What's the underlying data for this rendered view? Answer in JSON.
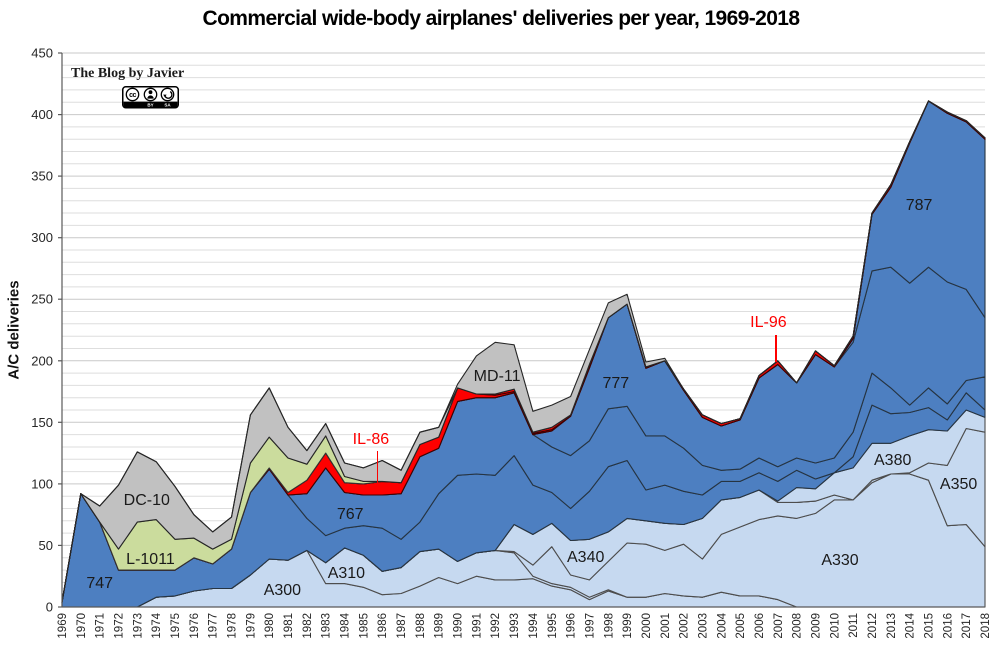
{
  "page": {
    "title": "Commercial wide-body airplanes' deliveries per year, 1969-2018"
  },
  "watermark": {
    "text": "The Blog by Javier",
    "badge": {
      "name": "CC BY-SA license badge",
      "cc_text": "cc",
      "labels": [
        "BY",
        "SA"
      ]
    }
  },
  "chart_data": {
    "type": "area",
    "stacked": true,
    "title": "Commercial wide-body airplanes' deliveries per year, 1969-2018",
    "xlabel": "",
    "ylabel": "A/C deliveries",
    "ylim": [
      0,
      450
    ],
    "y_major_step": 50,
    "y_minor_step": 10,
    "yticks": [
      0,
      50,
      100,
      150,
      200,
      250,
      300,
      350,
      400,
      450
    ],
    "grid": "horizontal",
    "x": [
      1969,
      1970,
      1971,
      1972,
      1973,
      1974,
      1975,
      1976,
      1977,
      1978,
      1979,
      1980,
      1981,
      1982,
      1983,
      1984,
      1985,
      1986,
      1987,
      1988,
      1989,
      1990,
      1991,
      1992,
      1993,
      1994,
      1995,
      1996,
      1997,
      1998,
      1999,
      2000,
      2001,
      2002,
      2003,
      2004,
      2005,
      2006,
      2007,
      2008,
      2009,
      2010,
      2011,
      2012,
      2013,
      2014,
      2015,
      2016,
      2017,
      2018
    ],
    "series": [
      {
        "name": "A300",
        "color": "#c6d9f0",
        "stroke": "#4d4d4d",
        "values": [
          0,
          0,
          0,
          0,
          0,
          8,
          9,
          13,
          15,
          15,
          26,
          39,
          38,
          46,
          19,
          19,
          16,
          10,
          11,
          17,
          24,
          19,
          25,
          22,
          22,
          23,
          17,
          14,
          6,
          13,
          8,
          8,
          11,
          9,
          8,
          12,
          9,
          9,
          6,
          0,
          0,
          0,
          0,
          0,
          0,
          0,
          0,
          0,
          0,
          0
        ]
      },
      {
        "name": "A310",
        "color": "#c6d9f0",
        "stroke": "#4d4d4d",
        "values": [
          0,
          0,
          0,
          0,
          0,
          0,
          0,
          0,
          0,
          0,
          0,
          0,
          0,
          0,
          17,
          29,
          26,
          19,
          21,
          28,
          23,
          18,
          19,
          24,
          22,
          2,
          2,
          2,
          2,
          1,
          0,
          0,
          0,
          0,
          0,
          0,
          0,
          0,
          0,
          0,
          0,
          0,
          0,
          0,
          0,
          0,
          0,
          0,
          0,
          0
        ]
      },
      {
        "name": "A330",
        "color": "#c6d9f0",
        "stroke": "#4d4d4d",
        "values": [
          0,
          0,
          0,
          0,
          0,
          0,
          0,
          0,
          0,
          0,
          0,
          0,
          0,
          0,
          0,
          0,
          0,
          0,
          0,
          0,
          0,
          0,
          0,
          0,
          1,
          9,
          30,
          10,
          14,
          23,
          44,
          43,
          35,
          42,
          31,
          47,
          56,
          62,
          68,
          72,
          76,
          87,
          87,
          101,
          108,
          108,
          103,
          66,
          67,
          49
        ]
      },
      {
        "name": "A340",
        "color": "#c6d9f0",
        "stroke": "#4d4d4d",
        "values": [
          0,
          0,
          0,
          0,
          0,
          0,
          0,
          0,
          0,
          0,
          0,
          0,
          0,
          0,
          0,
          0,
          0,
          0,
          0,
          0,
          0,
          0,
          0,
          0,
          22,
          25,
          19,
          28,
          33,
          24,
          20,
          19,
          22,
          16,
          33,
          28,
          24,
          24,
          11,
          13,
          10,
          4,
          0,
          2,
          0,
          0,
          0,
          0,
          0,
          0
        ]
      },
      {
        "name": "A350",
        "color": "#c6d9f0",
        "stroke": "#4d4d4d",
        "values": [
          0,
          0,
          0,
          0,
          0,
          0,
          0,
          0,
          0,
          0,
          0,
          0,
          0,
          0,
          0,
          0,
          0,
          0,
          0,
          0,
          0,
          0,
          0,
          0,
          0,
          0,
          0,
          0,
          0,
          0,
          0,
          0,
          0,
          0,
          0,
          0,
          0,
          0,
          0,
          0,
          0,
          0,
          0,
          0,
          0,
          1,
          14,
          49,
          78,
          93
        ]
      },
      {
        "name": "A380",
        "color": "#c6d9f0",
        "stroke": "#4d4d4d",
        "values": [
          0,
          0,
          0,
          0,
          0,
          0,
          0,
          0,
          0,
          0,
          0,
          0,
          0,
          0,
          0,
          0,
          0,
          0,
          0,
          0,
          0,
          0,
          0,
          0,
          0,
          0,
          0,
          0,
          0,
          0,
          0,
          0,
          0,
          0,
          0,
          0,
          0,
          0,
          1,
          12,
          10,
          18,
          26,
          30,
          25,
          30,
          27,
          28,
          15,
          12
        ]
      },
      {
        "name": "747",
        "color": "#4d7fc1",
        "stroke": "#263442",
        "values": [
          4,
          92,
          69,
          30,
          30,
          22,
          21,
          27,
          20,
          32,
          67,
          73,
          53,
          26,
          22,
          16,
          24,
          35,
          23,
          24,
          45,
          70,
          64,
          61,
          56,
          40,
          25,
          26,
          39,
          53,
          47,
          25,
          31,
          27,
          19,
          15,
          13,
          14,
          16,
          14,
          8,
          0,
          9,
          31,
          24,
          19,
          18,
          9,
          14,
          6
        ]
      },
      {
        "name": "767",
        "color": "#4d7fc1",
        "stroke": "#263442",
        "values": [
          0,
          0,
          0,
          0,
          0,
          0,
          0,
          0,
          0,
          0,
          0,
          0,
          0,
          20,
          55,
          29,
          25,
          27,
          37,
          53,
          37,
          60,
          62,
          63,
          51,
          41,
          37,
          43,
          41,
          47,
          44,
          44,
          40,
          35,
          24,
          9,
          10,
          12,
          12,
          10,
          13,
          12,
          20,
          26,
          21,
          6,
          16,
          13,
          10,
          27
        ]
      },
      {
        "name": "777",
        "color": "#4d7fc1",
        "stroke": "#263442",
        "values": [
          0,
          0,
          0,
          0,
          0,
          0,
          0,
          0,
          0,
          0,
          0,
          0,
          0,
          0,
          0,
          0,
          0,
          0,
          0,
          0,
          0,
          0,
          0,
          0,
          0,
          0,
          13,
          32,
          59,
          74,
          83,
          55,
          61,
          47,
          39,
          36,
          40,
          65,
          83,
          61,
          88,
          74,
          73,
          83,
          98,
          99,
          98,
          99,
          74,
          48
        ]
      },
      {
        "name": "787",
        "color": "#4d7fc1",
        "stroke": "#263442",
        "values": [
          0,
          0,
          0,
          0,
          0,
          0,
          0,
          0,
          0,
          0,
          0,
          0,
          0,
          0,
          0,
          0,
          0,
          0,
          0,
          0,
          0,
          0,
          0,
          0,
          0,
          0,
          0,
          0,
          0,
          0,
          0,
          0,
          0,
          0,
          0,
          0,
          0,
          0,
          0,
          0,
          0,
          0,
          3,
          46,
          65,
          114,
          135,
          137,
          136,
          145
        ]
      },
      {
        "name": "IL-86",
        "color": "#fe0000",
        "stroke": "#420000",
        "values": [
          0,
          0,
          0,
          0,
          0,
          0,
          0,
          0,
          0,
          0,
          0,
          1,
          2,
          11,
          12,
          8,
          9,
          11,
          9,
          10,
          9,
          11,
          3,
          2,
          1,
          1,
          1,
          0,
          1,
          0,
          0,
          0,
          0,
          0,
          0,
          0,
          0,
          0,
          0,
          0,
          0,
          0,
          0,
          0,
          0,
          0,
          0,
          0,
          0,
          0
        ]
      },
      {
        "name": "IL-96",
        "color": "#fe0000",
        "stroke": "#420000",
        "values": [
          0,
          0,
          0,
          0,
          0,
          0,
          0,
          0,
          0,
          0,
          0,
          0,
          0,
          0,
          0,
          0,
          0,
          0,
          0,
          0,
          0,
          0,
          0,
          1,
          2,
          1,
          2,
          1,
          2,
          0,
          0,
          1,
          0,
          1,
          2,
          2,
          1,
          2,
          3,
          0,
          3,
          1,
          2,
          1,
          2,
          1,
          0,
          1,
          1,
          1
        ]
      },
      {
        "name": "L-1011",
        "color": "#cbdc9d",
        "stroke": "#333333",
        "values": [
          0,
          0,
          0,
          17,
          39,
          41,
          25,
          16,
          12,
          8,
          24,
          25,
          28,
          13,
          14,
          5,
          2,
          0,
          0,
          0,
          0,
          0,
          0,
          0,
          0,
          0,
          0,
          0,
          0,
          0,
          0,
          0,
          0,
          0,
          0,
          0,
          0,
          0,
          0,
          0,
          0,
          0,
          0,
          0,
          0,
          0,
          0,
          0,
          0,
          0
        ]
      },
      {
        "name": "DC-10",
        "color": "#c1c1c1",
        "stroke": "#262626",
        "values": [
          0,
          0,
          13,
          52,
          57,
          47,
          43,
          19,
          14,
          18,
          39,
          40,
          25,
          11,
          10,
          11,
          11,
          17,
          10,
          10,
          8,
          0,
          0,
          0,
          0,
          0,
          0,
          0,
          0,
          0,
          0,
          0,
          0,
          0,
          0,
          0,
          0,
          0,
          0,
          0,
          0,
          0,
          0,
          0,
          0,
          0,
          0,
          0,
          0,
          0
        ]
      },
      {
        "name": "MD-11",
        "color": "#c1c1c1",
        "stroke": "#262626",
        "values": [
          0,
          0,
          0,
          0,
          0,
          0,
          0,
          0,
          0,
          0,
          0,
          0,
          0,
          0,
          0,
          0,
          0,
          0,
          0,
          0,
          0,
          3,
          31,
          42,
          36,
          17,
          18,
          15,
          12,
          12,
          8,
          4,
          2,
          0,
          0,
          0,
          0,
          0,
          0,
          0,
          0,
          0,
          0,
          0,
          0,
          0,
          0,
          0,
          0,
          0
        ]
      }
    ],
    "annotations": [
      {
        "text": "747",
        "year": 1971.0,
        "value": 19,
        "color": "#1a1a1a"
      },
      {
        "text": "DC-10",
        "year": 1973.5,
        "value": 86,
        "color": "#1a1a1a"
      },
      {
        "text": "L-1011",
        "year": 1973.7,
        "value": 38,
        "color": "#1a1a1a"
      },
      {
        "text": "A300",
        "year": 1980.7,
        "value": 13,
        "color": "#1a1a1a"
      },
      {
        "text": "A310",
        "year": 1984.1,
        "value": 27,
        "color": "#1a1a1a"
      },
      {
        "text": "767",
        "year": 1984.3,
        "value": 75,
        "color": "#1a1a1a"
      },
      {
        "text": "IL-86",
        "year": 1985.4,
        "value": 136,
        "color": "#fe0000",
        "pointer": {
          "year": 1985.75,
          "v_top": 127,
          "v_bottom": 101
        }
      },
      {
        "text": "MD-11",
        "year": 1992.1,
        "value": 187,
        "color": "#1a1a1a"
      },
      {
        "text": "A340",
        "year": 1996.8,
        "value": 40,
        "color": "#1a1a1a"
      },
      {
        "text": "777",
        "year": 1998.4,
        "value": 181,
        "color": "#1a1a1a"
      },
      {
        "text": "IL-96",
        "year": 2006.5,
        "value": 231,
        "color": "#fe0000",
        "pointer": {
          "year": 2006.9,
          "v_top": 221,
          "v_bottom": 199
        }
      },
      {
        "text": "A330",
        "year": 2010.3,
        "value": 37,
        "color": "#1a1a1a"
      },
      {
        "text": "A380",
        "year": 2013.1,
        "value": 119,
        "color": "#1a1a1a"
      },
      {
        "text": "787",
        "year": 2014.5,
        "value": 326,
        "color": "#1a1a1a"
      },
      {
        "text": "A350",
        "year": 2016.6,
        "value": 99,
        "color": "#1a1a1a"
      }
    ],
    "axis_colors": {
      "grid_minor": "#dedede",
      "grid_major": "#c9c9c9",
      "axis_line": "#595959",
      "tick_text": "#262626"
    }
  }
}
